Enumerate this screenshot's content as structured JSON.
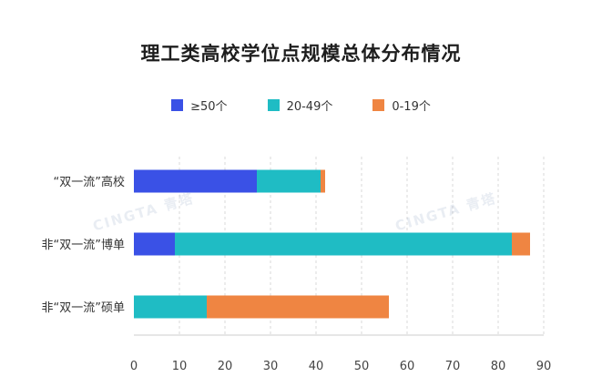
{
  "chart_data": {
    "type": "bar",
    "stacked": true,
    "orientation": "horizontal",
    "title": "理工类高校学位点规模总体分布情况",
    "categories": [
      "“双一流”高校",
      "非“双一流”博单",
      "非“双一流”硕单"
    ],
    "series": [
      {
        "name": "≥50个",
        "color": "#3a51e6",
        "values": [
          27,
          9,
          0
        ]
      },
      {
        "name": "20-49个",
        "color": "#1fbcc4",
        "values": [
          14,
          74,
          16
        ]
      },
      {
        "name": "0-19个",
        "color": "#ef8542",
        "values": [
          1,
          4,
          40
        ]
      }
    ],
    "xlim": [
      0,
      90
    ],
    "xticks": [
      0,
      10,
      20,
      30,
      40,
      50,
      60,
      70,
      80,
      90
    ],
    "grid": "vertical dashed",
    "legend_position": "top"
  },
  "watermarks": [
    "CINGTA 青塔",
    "CINGTA 青塔"
  ]
}
